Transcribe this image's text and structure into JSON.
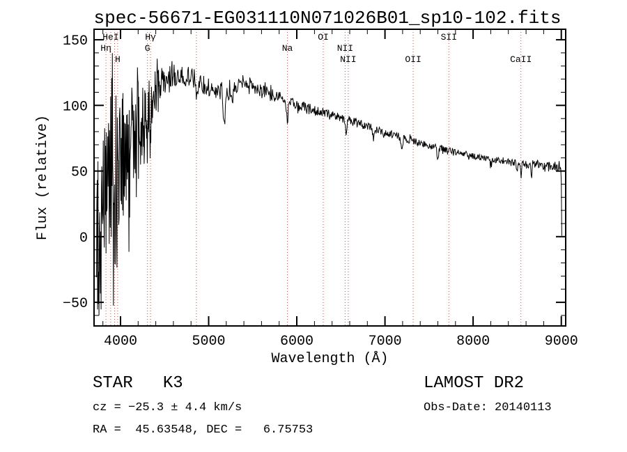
{
  "footer": {
    "classification": "STAR   K3",
    "survey": "LAMOST DR2",
    "velocity": "cz = −25.3 ± 4.4 km/s",
    "obs_date": "Obs-Date: 20140113",
    "coordinates": "RA =  45.63548, DEC =   6.75753"
  },
  "chart_data": {
    "type": "line",
    "title": "spec-56671-EG031110N071026B01_sp10-102.fits",
    "xlabel": "Wavelength (Å)",
    "ylabel": "Flux (relative)",
    "xlim": [
      3700,
      9050
    ],
    "ylim": [
      -68,
      158
    ],
    "x_ticks": [
      4000,
      5000,
      6000,
      7000,
      8000,
      9000
    ],
    "x_minor_step": 200,
    "y_ticks": [
      -50,
      0,
      50,
      100,
      150
    ],
    "y_minor_step": 10,
    "line_color": "#000000",
    "marker_color": "#a05a50",
    "grid": false,
    "seed": 13,
    "domain": [
      3728,
      9006
    ],
    "clamp": [
      -60,
      150
    ],
    "spectral_lines": [
      {
        "label": "Hη",
        "wavelength": 3835,
        "row": 1
      },
      {
        "label": "HeI",
        "wavelength": 3889,
        "row": 0
      },
      {
        "label": "",
        "wavelength": 3933,
        "row": -1
      },
      {
        "label": "H",
        "wavelength": 3968,
        "row": 2
      },
      {
        "label": "G",
        "wavelength": 4305,
        "row": 1
      },
      {
        "label": "Hγ",
        "wavelength": 4340,
        "row": 0
      },
      {
        "label": "",
        "wavelength": 4861,
        "row": -1
      },
      {
        "label": "Na",
        "wavelength": 5893,
        "row": 1
      },
      {
        "label": "OI",
        "wavelength": 6300,
        "row": 0
      },
      {
        "label": "NII",
        "wavelength": 6548,
        "row": 1
      },
      {
        "label": "NII",
        "wavelength": 6583,
        "row": 2
      },
      {
        "label": "OII",
        "wavelength": 7320,
        "row": 2
      },
      {
        "label": "SII",
        "wavelength": 7725,
        "row": 0
      },
      {
        "label": "CaII",
        "wavelength": 8542,
        "row": 2
      }
    ],
    "continuum": [
      [
        3728,
        0
      ],
      [
        3770,
        10
      ],
      [
        3810,
        20
      ],
      [
        3850,
        30
      ],
      [
        3890,
        40
      ],
      [
        3930,
        48
      ],
      [
        3970,
        54
      ],
      [
        4010,
        60
      ],
      [
        4060,
        67
      ],
      [
        4110,
        74
      ],
      [
        4160,
        81
      ],
      [
        4210,
        87
      ],
      [
        4260,
        93
      ],
      [
        4310,
        98
      ],
      [
        4360,
        104
      ],
      [
        4410,
        111
      ],
      [
        4460,
        117
      ],
      [
        4510,
        120
      ],
      [
        4560,
        121
      ],
      [
        4610,
        122
      ],
      [
        4660,
        123
      ],
      [
        4710,
        123
      ],
      [
        4760,
        122
      ],
      [
        4810,
        121
      ],
      [
        4860,
        119
      ],
      [
        4910,
        117
      ],
      [
        4960,
        115
      ],
      [
        5010,
        114
      ],
      [
        5060,
        111
      ],
      [
        5110,
        109
      ],
      [
        5160,
        108
      ],
      [
        5210,
        109
      ],
      [
        5260,
        112
      ],
      [
        5310,
        115
      ],
      [
        5360,
        117
      ],
      [
        5410,
        117
      ],
      [
        5460,
        116
      ],
      [
        5510,
        114
      ],
      [
        5560,
        113
      ],
      [
        5610,
        111
      ],
      [
        5660,
        110
      ],
      [
        5710,
        108
      ],
      [
        5760,
        107
      ],
      [
        5810,
        106
      ],
      [
        5860,
        104
      ],
      [
        5910,
        103
      ],
      [
        5960,
        101
      ],
      [
        6010,
        100
      ],
      [
        6110,
        98
      ],
      [
        6210,
        96
      ],
      [
        6310,
        94
      ],
      [
        6410,
        92
      ],
      [
        6510,
        90
      ],
      [
        6610,
        88
      ],
      [
        6710,
        86
      ],
      [
        6810,
        84
      ],
      [
        6910,
        81
      ],
      [
        7010,
        79
      ],
      [
        7110,
        77
      ],
      [
        7210,
        75
      ],
      [
        7310,
        73
      ],
      [
        7410,
        71
      ],
      [
        7510,
        69
      ],
      [
        7610,
        68
      ],
      [
        7710,
        66
      ],
      [
        7810,
        64
      ],
      [
        7910,
        62
      ],
      [
        8010,
        61
      ],
      [
        8110,
        60
      ],
      [
        8210,
        59
      ],
      [
        8310,
        58
      ],
      [
        8410,
        57
      ],
      [
        8510,
        56
      ],
      [
        8610,
        55
      ],
      [
        8710,
        55
      ],
      [
        8810,
        54
      ],
      [
        8910,
        54
      ],
      [
        8960,
        53
      ],
      [
        8995,
        52
      ],
      [
        9000,
        45
      ],
      [
        9003,
        20
      ],
      [
        9006,
        2
      ]
    ],
    "noise_envelope": [
      [
        3728,
        65
      ],
      [
        3780,
        75
      ],
      [
        3830,
        75
      ],
      [
        3880,
        70
      ],
      [
        3930,
        62
      ],
      [
        3980,
        55
      ],
      [
        4030,
        48
      ],
      [
        4080,
        42
      ],
      [
        4130,
        38
      ],
      [
        4180,
        34
      ],
      [
        4230,
        31
      ],
      [
        4280,
        28
      ],
      [
        4330,
        25
      ],
      [
        4380,
        19
      ],
      [
        4430,
        14
      ],
      [
        4480,
        11
      ],
      [
        4530,
        10
      ],
      [
        4630,
        9
      ],
      [
        4730,
        8
      ],
      [
        4830,
        8
      ],
      [
        4930,
        7
      ],
      [
        5030,
        7
      ],
      [
        5230,
        6
      ],
      [
        5430,
        5.5
      ],
      [
        5630,
        5
      ],
      [
        5830,
        4.5
      ],
      [
        6030,
        4
      ],
      [
        6230,
        4
      ],
      [
        6430,
        3.5
      ],
      [
        6630,
        3.5
      ],
      [
        6830,
        3
      ],
      [
        7030,
        3
      ],
      [
        7230,
        3
      ],
      [
        7430,
        2.5
      ],
      [
        7630,
        2.5
      ],
      [
        7830,
        2.5
      ],
      [
        8030,
        2.5
      ],
      [
        8230,
        2.5
      ],
      [
        8430,
        2.5
      ],
      [
        8630,
        3
      ],
      [
        8830,
        3
      ],
      [
        8960,
        3.5
      ],
      [
        9006,
        4
      ]
    ],
    "absorption_features": [
      {
        "wl": 3933,
        "depth": 35,
        "width": 6
      },
      {
        "wl": 4101,
        "depth": 28,
        "width": 7
      },
      {
        "wl": 4227,
        "depth": 20,
        "width": 6
      },
      {
        "wl": 4305,
        "depth": 22,
        "width": 9
      },
      {
        "wl": 4340,
        "depth": 20,
        "width": 6
      },
      {
        "wl": 4861,
        "depth": 14,
        "width": 7
      },
      {
        "wl": 5175,
        "depth": 22,
        "width": 10
      },
      {
        "wl": 5270,
        "depth": 12,
        "width": 8
      },
      {
        "wl": 5893,
        "depth": 14,
        "width": 9
      },
      {
        "wl": 6563,
        "depth": 13,
        "width": 7
      },
      {
        "wl": 6870,
        "depth": 8,
        "width": 8
      },
      {
        "wl": 7190,
        "depth": 6,
        "width": 10
      },
      {
        "wl": 7600,
        "depth": 8,
        "width": 9
      },
      {
        "wl": 8200,
        "depth": 5,
        "width": 10
      },
      {
        "wl": 8498,
        "depth": 7,
        "width": 6
      },
      {
        "wl": 8542,
        "depth": 9,
        "width": 6
      },
      {
        "wl": 8662,
        "depth": 8,
        "width": 6
      }
    ]
  }
}
